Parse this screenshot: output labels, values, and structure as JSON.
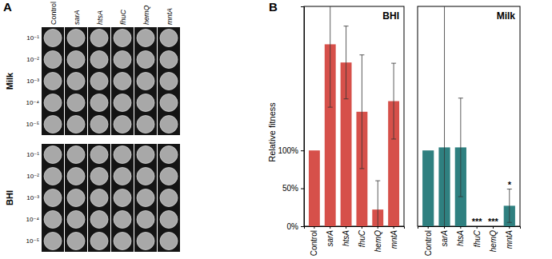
{
  "figure": {
    "panel_labels": [
      "A",
      "B"
    ]
  },
  "plates": {
    "columns": [
      "Control",
      "sarA",
      "htsA",
      "fhuC",
      "hemQ",
      "mntA"
    ],
    "dilutions": [
      "10⁻¹",
      "10⁻²",
      "10⁻³",
      "10⁻⁴",
      "10⁻⁵"
    ],
    "media": [
      "Milk",
      "BHI"
    ]
  },
  "chart_data": [
    {
      "type": "bar",
      "title": "BHI",
      "y_label": "Relative fitness",
      "categories": [
        "Control",
        "sarA",
        "htsA",
        "fhuC",
        "hemQ",
        "mntA"
      ],
      "values": [
        100,
        240,
        216,
        151,
        22,
        165
      ],
      "errors": [
        0,
        83,
        48,
        75,
        38,
        50
      ],
      "color": "#d6504a",
      "ylim": [
        0,
        290
      ],
      "yticks": [
        {
          "value": 0,
          "label": "0%"
        },
        {
          "value": 50,
          "label": "50%"
        },
        {
          "value": 100,
          "label": "100%"
        }
      ]
    },
    {
      "type": "bar",
      "title": "Milk",
      "categories": [
        "Control",
        "sarA",
        "htsA",
        "fhuC",
        "hemQ",
        "mntA"
      ],
      "values": [
        100,
        104,
        104,
        0,
        0,
        27
      ],
      "errors": [
        0,
        190,
        65,
        0,
        0,
        22
      ],
      "annotations": [
        null,
        null,
        null,
        "***",
        "***",
        "*"
      ],
      "color": "#2f8080",
      "ylim": [
        0,
        290
      ],
      "tick_labels": "x"
    }
  ]
}
